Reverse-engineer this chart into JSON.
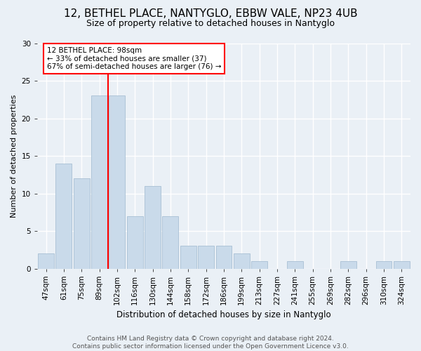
{
  "title": "12, BETHEL PLACE, NANTYGLO, EBBW VALE, NP23 4UB",
  "subtitle": "Size of property relative to detached houses in Nantyglo",
  "xlabel": "Distribution of detached houses by size in Nantyglo",
  "ylabel": "Number of detached properties",
  "bar_labels": [
    "47sqm",
    "61sqm",
    "75sqm",
    "89sqm",
    "102sqm",
    "116sqm",
    "130sqm",
    "144sqm",
    "158sqm",
    "172sqm",
    "186sqm",
    "199sqm",
    "213sqm",
    "227sqm",
    "241sqm",
    "255sqm",
    "269sqm",
    "282sqm",
    "296sqm",
    "310sqm",
    "324sqm"
  ],
  "bar_values": [
    2,
    14,
    12,
    23,
    23,
    7,
    11,
    7,
    3,
    3,
    3,
    2,
    1,
    0,
    1,
    0,
    0,
    1,
    0,
    1,
    1
  ],
  "bar_color": "#c9daea",
  "bar_edge_color": "#a8c0d4",
  "vline_color": "red",
  "annotation_text": "12 BETHEL PLACE: 98sqm\n← 33% of detached houses are smaller (37)\n67% of semi-detached houses are larger (76) →",
  "annotation_box_color": "white",
  "annotation_box_edge": "red",
  "ylim": [
    0,
    30
  ],
  "yticks": [
    0,
    5,
    10,
    15,
    20,
    25,
    30
  ],
  "footer": "Contains HM Land Registry data © Crown copyright and database right 2024.\nContains public sector information licensed under the Open Government Licence v3.0.",
  "bg_color": "#eaf0f6",
  "grid_color": "white",
  "title_fontsize": 11,
  "subtitle_fontsize": 9,
  "ylabel_fontsize": 8,
  "xlabel_fontsize": 8.5,
  "tick_fontsize": 7.5,
  "footer_fontsize": 6.5
}
